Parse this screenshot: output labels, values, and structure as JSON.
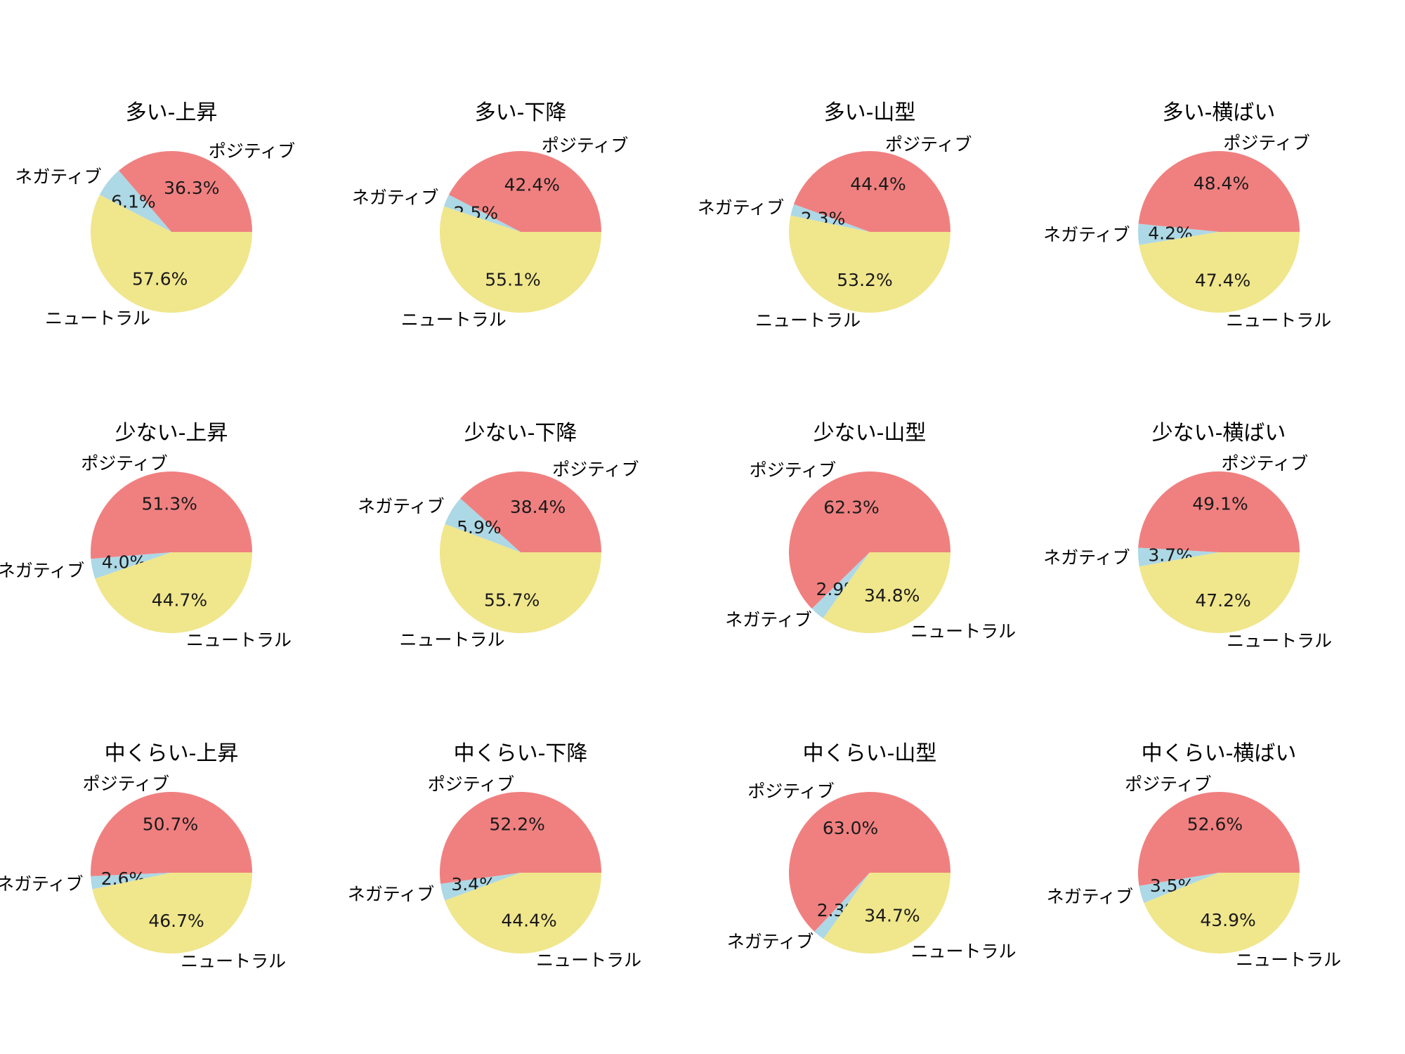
{
  "colors": {
    "ポジティブ": "#F08080",
    "ネガティブ": "#ADD8E6",
    "ニュートラル": "#F0E68C"
  },
  "chart_data": [
    {
      "type": "pie",
      "title": "多い-上昇",
      "labels": [
        "ポジティブ",
        "ネガティブ",
        "ニュートラル"
      ],
      "values": [
        36.3,
        6.1,
        57.6
      ],
      "value_labels": [
        "36.3%",
        "6.1%",
        "57.6%"
      ]
    },
    {
      "type": "pie",
      "title": "多い-下降",
      "labels": [
        "ポジティブ",
        "ネガティブ",
        "ニュートラル"
      ],
      "values": [
        42.4,
        2.5,
        55.1
      ],
      "value_labels": [
        "42.4%",
        "2.5%",
        "55.1%"
      ]
    },
    {
      "type": "pie",
      "title": "多い-山型",
      "labels": [
        "ポジティブ",
        "ネガティブ",
        "ニュートラル"
      ],
      "values": [
        44.4,
        2.3,
        53.2
      ],
      "value_labels": [
        "44.4%",
        "2.3%",
        "53.2%"
      ]
    },
    {
      "type": "pie",
      "title": "多い-横ばい",
      "labels": [
        "ポジティブ",
        "ネガティブ",
        "ニュートラル"
      ],
      "values": [
        48.4,
        4.2,
        47.4
      ],
      "value_labels": [
        "48.4%",
        "4.2%",
        "47.4%"
      ]
    },
    {
      "type": "pie",
      "title": "少ない-上昇",
      "labels": [
        "ポジティブ",
        "ネガティブ",
        "ニュートラル"
      ],
      "values": [
        51.3,
        4.0,
        44.7
      ],
      "value_labels": [
        "51.3%",
        "4.0%",
        "44.7%"
      ]
    },
    {
      "type": "pie",
      "title": "少ない-下降",
      "labels": [
        "ポジティブ",
        "ネガティブ",
        "ニュートラル"
      ],
      "values": [
        38.4,
        5.9,
        55.7
      ],
      "value_labels": [
        "38.4%",
        "5.9%",
        "55.7%"
      ]
    },
    {
      "type": "pie",
      "title": "少ない-山型",
      "labels": [
        "ポジティブ",
        "ネガティブ",
        "ニュートラル"
      ],
      "values": [
        62.3,
        2.9,
        34.8
      ],
      "value_labels": [
        "62.3%",
        "2.9%",
        "34.8%"
      ]
    },
    {
      "type": "pie",
      "title": "少ない-横ばい",
      "labels": [
        "ポジティブ",
        "ネガティブ",
        "ニュートラル"
      ],
      "values": [
        49.1,
        3.7,
        47.2
      ],
      "value_labels": [
        "49.1%",
        "3.7%",
        "47.2%"
      ]
    },
    {
      "type": "pie",
      "title": "中くらい-上昇",
      "labels": [
        "ポジティブ",
        "ネガティブ",
        "ニュートラル"
      ],
      "values": [
        50.7,
        2.6,
        46.7
      ],
      "value_labels": [
        "50.7%",
        "2.6%",
        "46.7%"
      ]
    },
    {
      "type": "pie",
      "title": "中くらい-下降",
      "labels": [
        "ポジティブ",
        "ネガティブ",
        "ニュートラル"
      ],
      "values": [
        52.2,
        3.4,
        44.4
      ],
      "value_labels": [
        "52.2%",
        "3.4%",
        "44.4%"
      ]
    },
    {
      "type": "pie",
      "title": "中くらい-山型",
      "labels": [
        "ポジティブ",
        "ネガティブ",
        "ニュートラル"
      ],
      "values": [
        63.0,
        2.3,
        34.7
      ],
      "value_labels": [
        "63.0%",
        "2.3%",
        "34.7%"
      ]
    },
    {
      "type": "pie",
      "title": "中くらい-横ばい",
      "labels": [
        "ポジティブ",
        "ネガティブ",
        "ニュートラル"
      ],
      "values": [
        52.6,
        3.5,
        43.9
      ],
      "value_labels": [
        "52.6%",
        "3.5%",
        "43.9%"
      ]
    }
  ]
}
